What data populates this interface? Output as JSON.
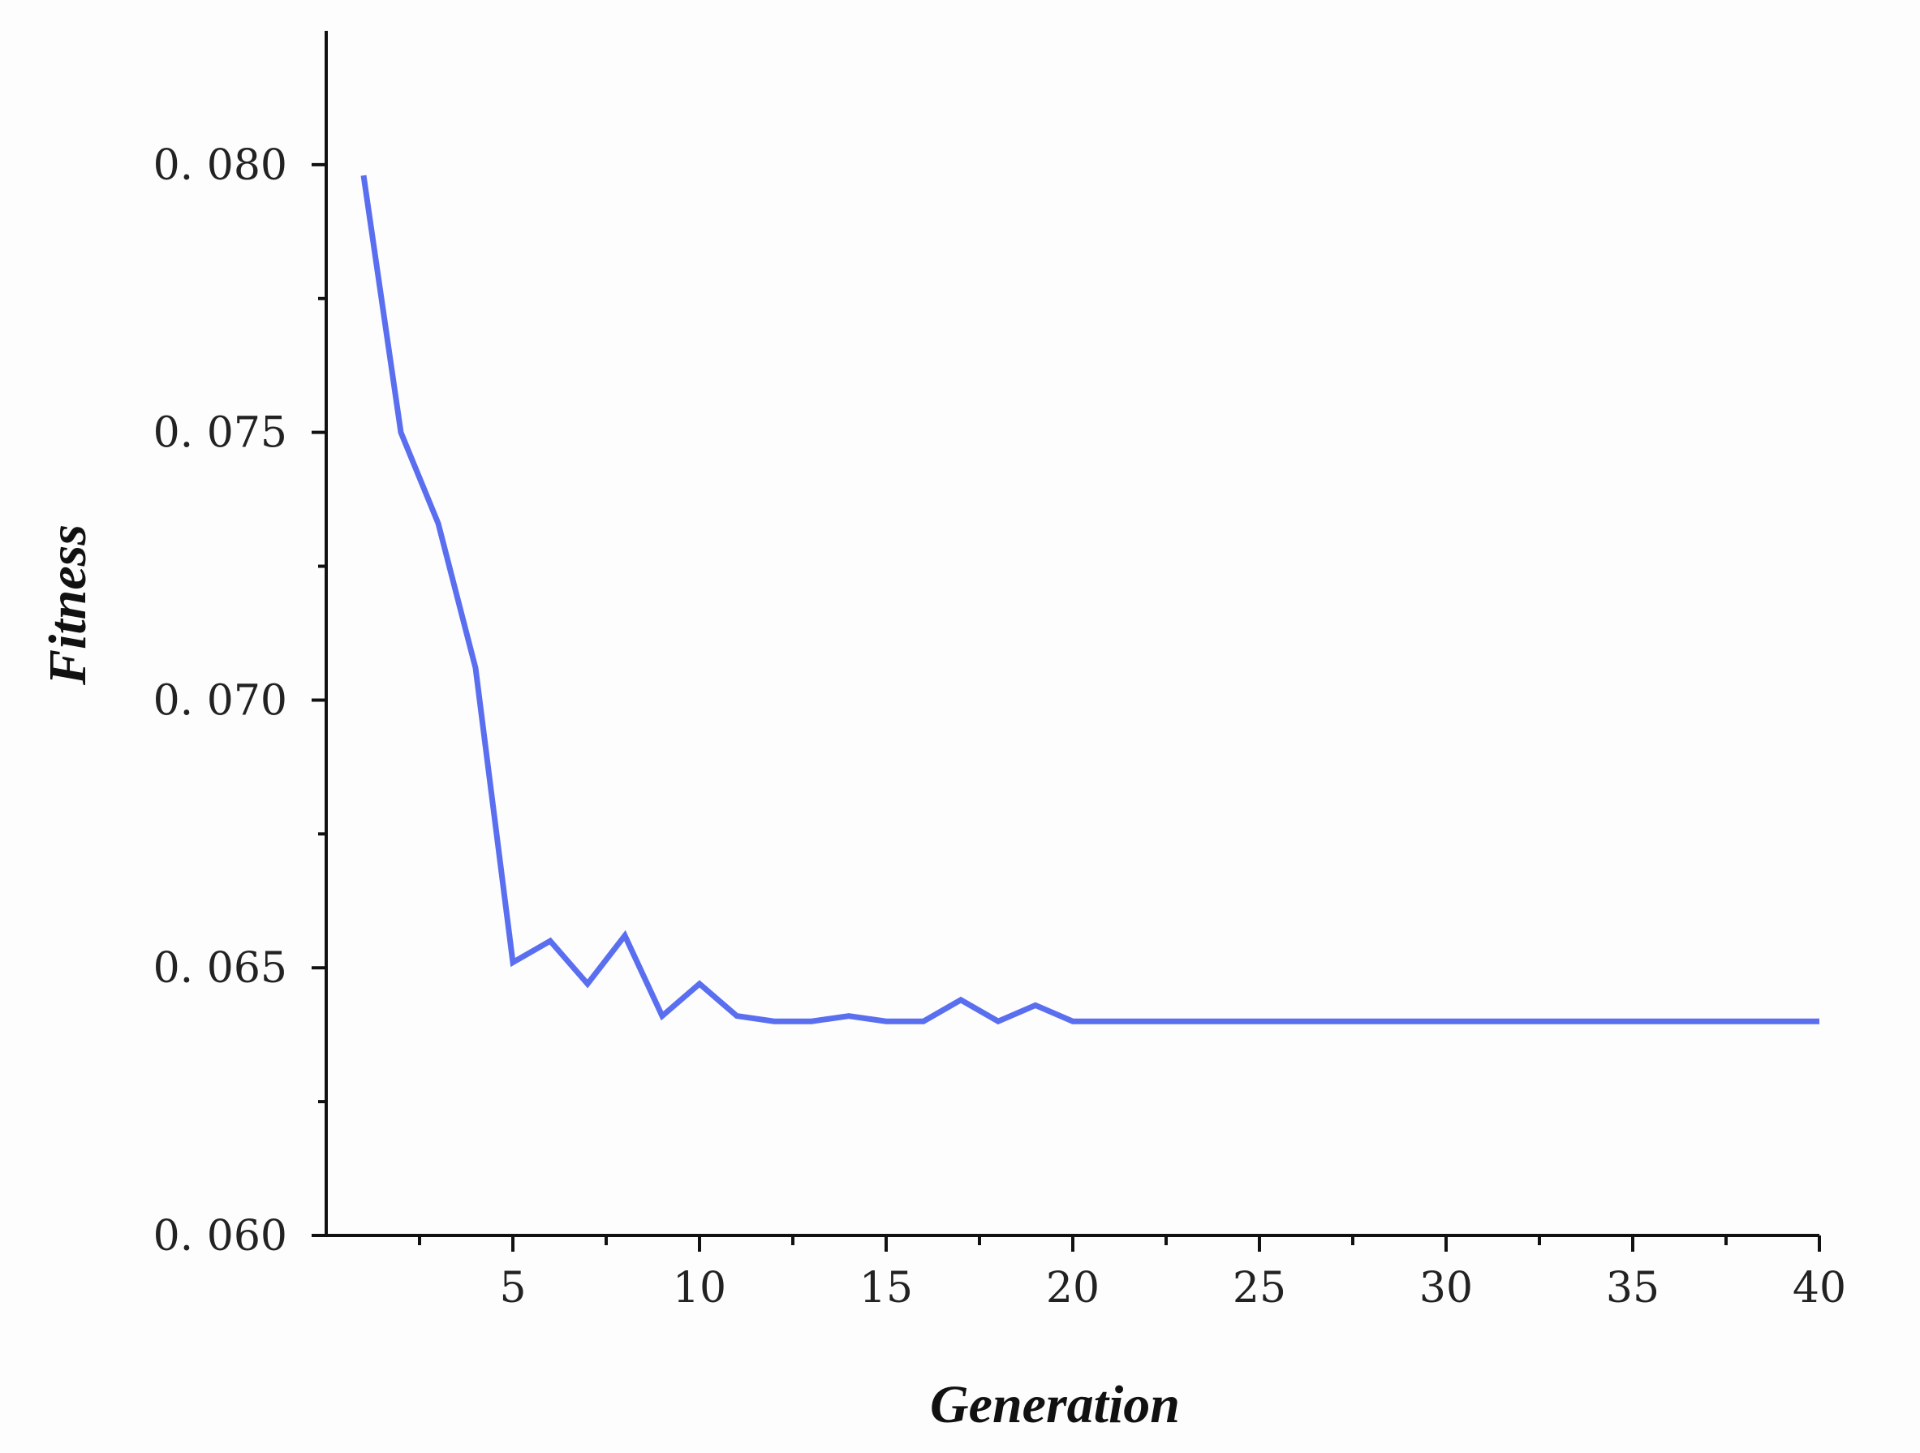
{
  "chart_data": {
    "type": "line",
    "title": "",
    "xlabel": "Generation",
    "ylabel": "Fitness",
    "xlim": [
      0,
      40
    ],
    "ylim": [
      0.06,
      0.0825
    ],
    "x_ticks": [
      5,
      10,
      15,
      20,
      25,
      30,
      35,
      40
    ],
    "x_tick_labels": [
      "5",
      "10",
      "15",
      "20",
      "25",
      "30",
      "35",
      "40"
    ],
    "y_ticks": [
      0.06,
      0.065,
      0.07,
      0.075,
      0.08
    ],
    "y_tick_labels": [
      "0. 060",
      "0. 065",
      "0. 070",
      "0. 075",
      "0. 080"
    ],
    "grid": false,
    "legend": "none",
    "line_color": "#5a6ff0",
    "series": [
      {
        "x": [
          1,
          2,
          3,
          4,
          5,
          6,
          7,
          8,
          9,
          10,
          11,
          12,
          13,
          14,
          15,
          16,
          17,
          18,
          19,
          20,
          21,
          22,
          23,
          24,
          25,
          26,
          27,
          28,
          29,
          30,
          31,
          32,
          33,
          34,
          35,
          36,
          37,
          38,
          39,
          40
        ],
        "values": [
          0.0798,
          0.075,
          0.0733,
          0.0706,
          0.0651,
          0.0655,
          0.0647,
          0.0656,
          0.0641,
          0.0647,
          0.0641,
          0.064,
          0.064,
          0.0641,
          0.064,
          0.064,
          0.0644,
          0.064,
          0.0643,
          0.064,
          0.064,
          0.064,
          0.064,
          0.064,
          0.064,
          0.064,
          0.064,
          0.064,
          0.064,
          0.064,
          0.064,
          0.064,
          0.064,
          0.064,
          0.064,
          0.064,
          0.064,
          0.064,
          0.064,
          0.064
        ]
      }
    ]
  }
}
